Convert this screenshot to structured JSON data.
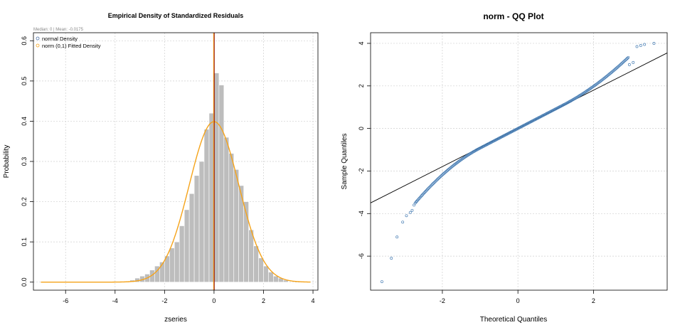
{
  "chart_data": [
    {
      "type": "bar",
      "title": "Empirical Density of Standardized Residuals",
      "subtitle": "Median: 0 | Mean: -0.0175",
      "xlabel": "zseries",
      "ylabel": "Probability",
      "xlim": [
        -7.3,
        4.2
      ],
      "ylim": [
        -0.02,
        0.62
      ],
      "xticks": [
        -6,
        -4,
        -2,
        0,
        2,
        4
      ],
      "yticks": [
        0.0,
        0.1,
        0.2,
        0.3,
        0.4,
        0.5,
        0.6
      ],
      "grid": true,
      "legend": {
        "placement": "top-left",
        "entries": [
          {
            "label": "normal Density",
            "color": "#4a6fa5",
            "marker": "circle"
          },
          {
            "label": "norm (0,1) Fitted Density",
            "color": "#f5a31a",
            "marker": "circle"
          }
        ]
      },
      "bins": {
        "start": -3.4,
        "width": 0.2,
        "values": [
          0.005,
          0.01,
          0.015,
          0.02,
          0.03,
          0.04,
          0.05,
          0.065,
          0.085,
          0.1,
          0.14,
          0.18,
          0.22,
          0.265,
          0.3,
          0.38,
          0.42,
          0.52,
          0.49,
          0.36,
          0.32,
          0.28,
          0.24,
          0.2,
          0.13,
          0.09,
          0.06,
          0.04,
          0.025,
          0.015,
          0.01,
          0.005
        ]
      },
      "fitted_density": {
        "name": "norm (0,1) Fitted Density",
        "mean": 0,
        "sd": 1,
        "color": "#f5a31a"
      },
      "vertical_lines": [
        {
          "x": 0,
          "color": "#8b0000"
        },
        {
          "x": -0.0175,
          "color": "#f5a31a"
        }
      ],
      "colors": {
        "bars": "#bdbdbd",
        "bar_border": "#ffffff"
      }
    },
    {
      "type": "scatter",
      "title": "norm - QQ Plot",
      "xlabel": "Theoretical Quantiles",
      "ylabel": "Sample Quantiles",
      "xlim": [
        -3.9,
        3.95
      ],
      "ylim": [
        -7.6,
        4.5
      ],
      "xticks": [
        -2,
        0,
        2
      ],
      "yticks": [
        -6,
        -4,
        -2,
        0,
        2,
        4
      ],
      "grid": true,
      "points": {
        "count": 1500,
        "lower_tail_x": [
          -3.6,
          -3.35,
          -3.2,
          -3.05,
          -2.95,
          -2.85,
          -2.8,
          -2.75
        ],
        "lower_tail_y": [
          -7.2,
          -6.1,
          -5.1,
          -4.4,
          -4.1,
          -3.95,
          -3.85,
          -3.6
        ],
        "upper_tail_x": [
          3.6,
          3.35,
          3.25,
          3.15,
          3.05,
          2.95
        ],
        "upper_tail_y": [
          4.0,
          3.95,
          3.9,
          3.85,
          3.1,
          3.0
        ],
        "color": "#4a7fb5"
      },
      "reference_line": {
        "x": [
          -3.9,
          3.95
        ],
        "y": [
          -3.5,
          3.55
        ],
        "color": "#000000"
      }
    }
  ]
}
